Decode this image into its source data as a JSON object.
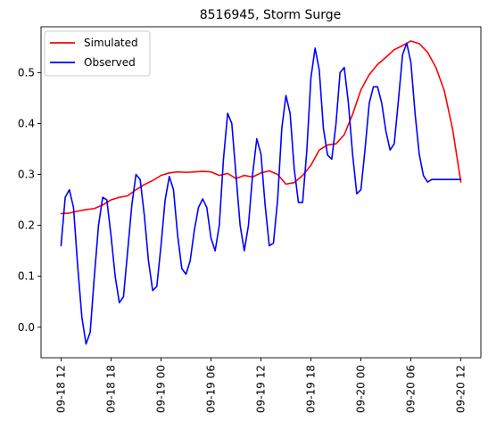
{
  "chart_data": {
    "type": "line",
    "title": "8516945, Storm Surge",
    "xlabel": "",
    "ylabel": "",
    "x_unit": "hours",
    "x_ticks": [
      {
        "x": 0,
        "label": "09-18 12"
      },
      {
        "x": 6,
        "label": "09-18 18"
      },
      {
        "x": 12,
        "label": "09-19 00"
      },
      {
        "x": 18,
        "label": "09-19 06"
      },
      {
        "x": 24,
        "label": "09-19 12"
      },
      {
        "x": 30,
        "label": "09-19 18"
      },
      {
        "x": 36,
        "label": "09-20 00"
      },
      {
        "x": 42,
        "label": "09-20 06"
      },
      {
        "x": 48,
        "label": "09-20 12"
      }
    ],
    "xlim": [
      -2.4,
      50.4
    ],
    "ylim": [
      -0.06,
      0.59
    ],
    "y_ticks": [
      {
        "y": 0.0,
        "label": "0.0"
      },
      {
        "y": 0.1,
        "label": "0.1"
      },
      {
        "y": 0.2,
        "label": "0.2"
      },
      {
        "y": 0.3,
        "label": "0.3"
      },
      {
        "y": 0.4,
        "label": "0.4"
      },
      {
        "y": 0.5,
        "label": "0.5"
      }
    ],
    "grid": false,
    "legend_position": "top-left",
    "series": [
      {
        "name": "Simulated",
        "color": "#ff0000",
        "points": [
          [
            0,
            0.223
          ],
          [
            1,
            0.224
          ],
          [
            2,
            0.228
          ],
          [
            3,
            0.231
          ],
          [
            4,
            0.233
          ],
          [
            5,
            0.24
          ],
          [
            6,
            0.25
          ],
          [
            7,
            0.255
          ],
          [
            8,
            0.258
          ],
          [
            9,
            0.27
          ],
          [
            10,
            0.28
          ],
          [
            11,
            0.288
          ],
          [
            12,
            0.298
          ],
          [
            13,
            0.303
          ],
          [
            14,
            0.305
          ],
          [
            15,
            0.304
          ],
          [
            16,
            0.305
          ],
          [
            17,
            0.306
          ],
          [
            18,
            0.305
          ],
          [
            19,
            0.298
          ],
          [
            20,
            0.302
          ],
          [
            21,
            0.292
          ],
          [
            22,
            0.298
          ],
          [
            23,
            0.295
          ],
          [
            24,
            0.303
          ],
          [
            25,
            0.307
          ],
          [
            26,
            0.3
          ],
          [
            27,
            0.281
          ],
          [
            28,
            0.284
          ],
          [
            29,
            0.298
          ],
          [
            30,
            0.318
          ],
          [
            31,
            0.348
          ],
          [
            32,
            0.358
          ],
          [
            33,
            0.36
          ],
          [
            34,
            0.378
          ],
          [
            35,
            0.418
          ],
          [
            36,
            0.466
          ],
          [
            37,
            0.496
          ],
          [
            38,
            0.516
          ],
          [
            39,
            0.53
          ],
          [
            40,
            0.545
          ],
          [
            41,
            0.553
          ],
          [
            42,
            0.562
          ],
          [
            43,
            0.557
          ],
          [
            44,
            0.54
          ],
          [
            45,
            0.51
          ],
          [
            46,
            0.465
          ],
          [
            47,
            0.39
          ],
          [
            48,
            0.285
          ]
        ]
      },
      {
        "name": "Observed",
        "color": "#0000ff",
        "points": [
          [
            0,
            0.16
          ],
          [
            0.5,
            0.255
          ],
          [
            1,
            0.27
          ],
          [
            1.5,
            0.235
          ],
          [
            2,
            0.12
          ],
          [
            2.5,
            0.02
          ],
          [
            3,
            -0.033
          ],
          [
            3.5,
            -0.01
          ],
          [
            4,
            0.1
          ],
          [
            4.5,
            0.2
          ],
          [
            5,
            0.255
          ],
          [
            5.5,
            0.25
          ],
          [
            6,
            0.18
          ],
          [
            6.5,
            0.1
          ],
          [
            7,
            0.048
          ],
          [
            7.5,
            0.06
          ],
          [
            8,
            0.15
          ],
          [
            8.5,
            0.24
          ],
          [
            9,
            0.3
          ],
          [
            9.5,
            0.29
          ],
          [
            10,
            0.22
          ],
          [
            10.5,
            0.13
          ],
          [
            11,
            0.072
          ],
          [
            11.5,
            0.08
          ],
          [
            12,
            0.16
          ],
          [
            12.5,
            0.25
          ],
          [
            13,
            0.296
          ],
          [
            13.5,
            0.27
          ],
          [
            14,
            0.18
          ],
          [
            14.5,
            0.115
          ],
          [
            15,
            0.104
          ],
          [
            15.5,
            0.13
          ],
          [
            16,
            0.19
          ],
          [
            16.5,
            0.235
          ],
          [
            17,
            0.252
          ],
          [
            17.5,
            0.235
          ],
          [
            18,
            0.175
          ],
          [
            18.5,
            0.15
          ],
          [
            19,
            0.2
          ],
          [
            19.5,
            0.33
          ],
          [
            20,
            0.42
          ],
          [
            20.5,
            0.4
          ],
          [
            21,
            0.3
          ],
          [
            21.5,
            0.2
          ],
          [
            22,
            0.15
          ],
          [
            22.5,
            0.2
          ],
          [
            23,
            0.3
          ],
          [
            23.5,
            0.37
          ],
          [
            24,
            0.34
          ],
          [
            24.5,
            0.24
          ],
          [
            25,
            0.16
          ],
          [
            25.5,
            0.165
          ],
          [
            26,
            0.25
          ],
          [
            26.5,
            0.39
          ],
          [
            27,
            0.455
          ],
          [
            27.5,
            0.42
          ],
          [
            28,
            0.31
          ],
          [
            28.5,
            0.245
          ],
          [
            29,
            0.245
          ],
          [
            29.5,
            0.345
          ],
          [
            30,
            0.49
          ],
          [
            30.5,
            0.548
          ],
          [
            31,
            0.505
          ],
          [
            31.5,
            0.39
          ],
          [
            32,
            0.338
          ],
          [
            32.5,
            0.33
          ],
          [
            33,
            0.398
          ],
          [
            33.5,
            0.5
          ],
          [
            34,
            0.51
          ],
          [
            34.5,
            0.44
          ],
          [
            35,
            0.34
          ],
          [
            35.5,
            0.262
          ],
          [
            36,
            0.27
          ],
          [
            36.5,
            0.35
          ],
          [
            37,
            0.44
          ],
          [
            37.5,
            0.472
          ],
          [
            38,
            0.472
          ],
          [
            38.5,
            0.44
          ],
          [
            39,
            0.385
          ],
          [
            39.5,
            0.348
          ],
          [
            40,
            0.36
          ],
          [
            40.5,
            0.445
          ],
          [
            41,
            0.535
          ],
          [
            41.5,
            0.558
          ],
          [
            42,
            0.52
          ],
          [
            42.5,
            0.42
          ],
          [
            43,
            0.34
          ],
          [
            43.5,
            0.298
          ],
          [
            44,
            0.285
          ],
          [
            44.5,
            0.29
          ],
          [
            48,
            0.29
          ]
        ]
      }
    ]
  }
}
